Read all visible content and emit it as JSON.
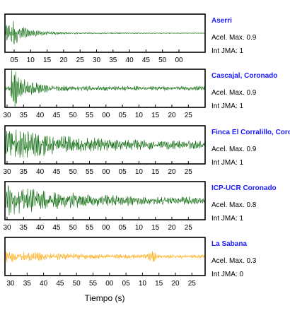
{
  "chart_data": [
    {
      "type": "line",
      "station": "Aserri",
      "acel_label": "Acel. Max. 0.9",
      "int_label": "Int JMA: 1",
      "color": "#006400",
      "tick_labels": [
        "05",
        "10",
        "15",
        "20",
        "25",
        "30",
        "35",
        "40",
        "45",
        "50",
        "00"
      ],
      "profile": "impulsive",
      "relative_amplitude": 1.0
    },
    {
      "type": "line",
      "station": "Cascajal, Coronado",
      "acel_label": "Acel. Max. 0.9",
      "int_label": "Int JMA: 1",
      "color": "#006400",
      "tick_labels": [
        "30",
        "35",
        "40",
        "45",
        "50",
        "55",
        "00",
        "05",
        "10",
        "15",
        "20",
        "25"
      ],
      "profile": "spike-then-coda",
      "relative_amplitude": 1.0
    },
    {
      "type": "line",
      "station": "Finca El Corralillo, Coronado",
      "acel_label": "Acel. Max. 0.9",
      "int_label": "Int JMA: 1",
      "color": "#006400",
      "tick_labels": [
        "30",
        "35",
        "40",
        "45",
        "50",
        "55",
        "00",
        "05",
        "10",
        "15",
        "20",
        "25"
      ],
      "profile": "long-decay",
      "relative_amplitude": 1.0
    },
    {
      "type": "line",
      "station": "ICP-UCR Coronado",
      "acel_label": "Acel. Max. 0.8",
      "int_label": "Int JMA: 1",
      "color": "#006400",
      "tick_labels": [
        "30",
        "35",
        "40",
        "45",
        "50",
        "55",
        "00",
        "05",
        "10",
        "15",
        "20",
        "25"
      ],
      "profile": "long-decay",
      "relative_amplitude": 0.9
    },
    {
      "type": "line",
      "station": "La Sabana",
      "acel_label": "Acel. Max. 0.3",
      "int_label": "Int JMA: 0",
      "color": "#ffa500",
      "tick_labels": [
        "30",
        "35",
        "40",
        "45",
        "50",
        "55",
        "00",
        "05",
        "10",
        "15",
        "20",
        "25"
      ],
      "profile": "long-decay-with-late-burst",
      "relative_amplitude": 0.33
    }
  ],
  "xlabel": "Tiempo (s)"
}
